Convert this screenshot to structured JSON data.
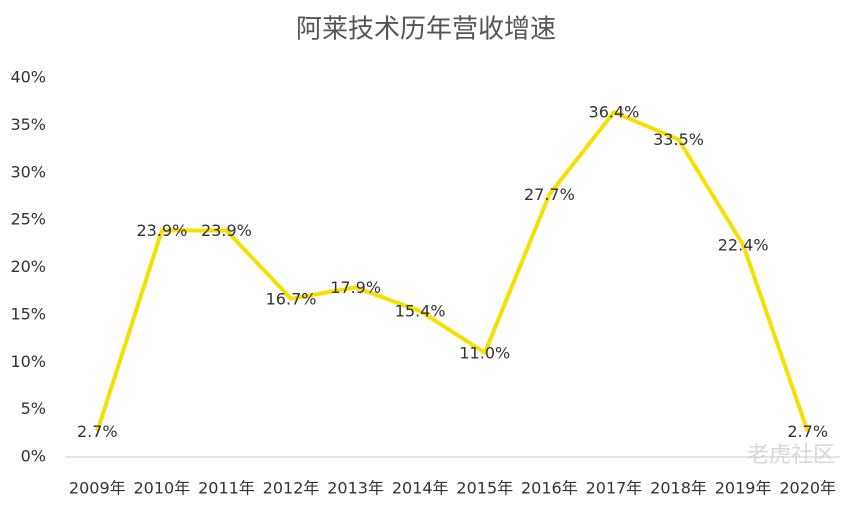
{
  "chart_data": {
    "type": "line",
    "title": "阿莱技术历年营收增速",
    "categories": [
      "2009年",
      "2010年",
      "2011年",
      "2012年",
      "2013年",
      "2014年",
      "2015年",
      "2016年",
      "2017年",
      "2018年",
      "2019年",
      "2020年"
    ],
    "values": [
      2.7,
      23.9,
      23.9,
      16.7,
      17.9,
      15.4,
      11.0,
      27.7,
      36.4,
      33.5,
      22.4,
      2.7
    ],
    "value_labels": [
      "2.7%",
      "23.9%",
      "23.9%",
      "16.7%",
      "17.9%",
      "15.4%",
      "11.0%",
      "27.7%",
      "36.4%",
      "33.5%",
      "22.4%",
      "2.7%"
    ],
    "color": "#f7e000",
    "ylim": [
      0,
      40
    ],
    "yticks": [
      {
        "value": 0,
        "label": "0%"
      },
      {
        "value": 5,
        "label": "5%"
      },
      {
        "value": 10,
        "label": "10%"
      },
      {
        "value": 15,
        "label": "15%"
      },
      {
        "value": 20,
        "label": "20%"
      },
      {
        "value": 25,
        "label": "25%"
      },
      {
        "value": 30,
        "label": "30%"
      },
      {
        "value": 35,
        "label": "35%"
      },
      {
        "value": 40,
        "label": "40%"
      }
    ],
    "grid": false,
    "watermark": "老虎社区"
  }
}
